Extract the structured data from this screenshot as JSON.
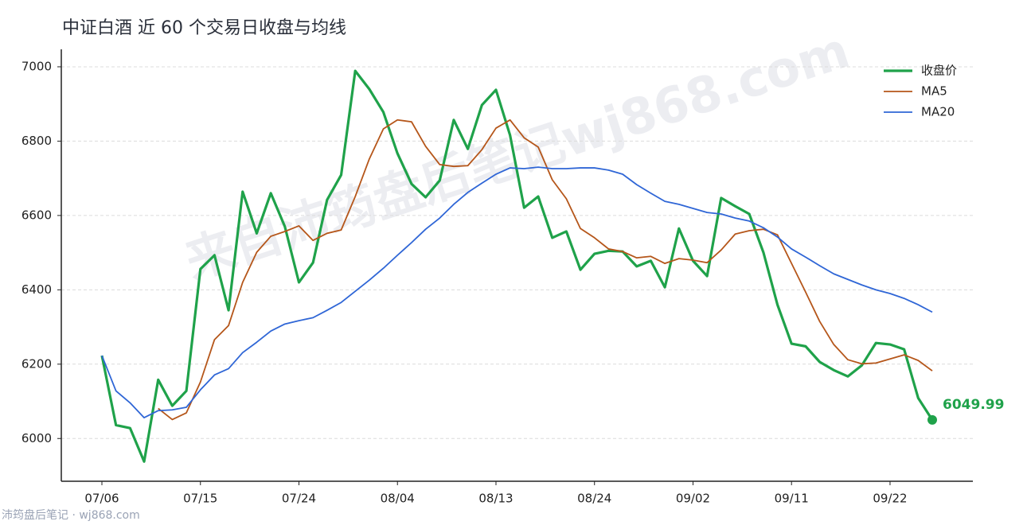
{
  "chart_data": {
    "type": "line",
    "title": "中证白酒 近 60 个交易日收盘与均线",
    "watermark": "来自沛筠盘后笔记wj868.com",
    "footer": "沛筠盘后笔记 · wj868.com",
    "categories": [
      "07/06",
      null,
      null,
      null,
      null,
      null,
      null,
      "07/15",
      null,
      null,
      null,
      null,
      null,
      null,
      "07/24",
      null,
      null,
      null,
      null,
      null,
      null,
      "08/04",
      null,
      null,
      null,
      null,
      null,
      null,
      "08/13",
      null,
      null,
      null,
      null,
      null,
      null,
      "08/24",
      null,
      null,
      null,
      null,
      null,
      null,
      "09/02",
      null,
      null,
      null,
      null,
      null,
      null,
      "09/11",
      null,
      null,
      null,
      null,
      null,
      null,
      "09/22",
      null,
      null,
      null
    ],
    "series": [
      {
        "name": "收盘价",
        "color": "#1fa24a",
        "width": 3.2,
        "values": [
          6223,
          6036,
          6028,
          5938,
          6158,
          6088,
          6128,
          6456,
          6493,
          6345,
          6664,
          6552,
          6660,
          6570,
          6420,
          6473,
          6642,
          6709,
          6989,
          6940,
          6878,
          6767,
          6685,
          6649,
          6694,
          6857,
          6779,
          6897,
          6938,
          6816,
          6621,
          6651,
          6540,
          6557,
          6454,
          6497,
          6505,
          6503,
          6463,
          6478,
          6407,
          6565,
          6478,
          6437,
          6647,
          6625,
          6604,
          6501,
          6360,
          6255,
          6248,
          6206,
          6184,
          6167,
          6197,
          6257,
          6253,
          6240,
          6109,
          6049.99
        ]
      },
      {
        "name": "MA5",
        "color": "#b5561a",
        "width": 1.8,
        "values": [
          null,
          null,
          null,
          null,
          6081,
          6051,
          6069,
          6152,
          6266,
          6304,
          6420,
          6501,
          6544,
          6557,
          6572,
          6533,
          6552,
          6561,
          6651,
          6752,
          6833,
          6857,
          6852,
          6786,
          6737,
          6732,
          6734,
          6777,
          6835,
          6857,
          6809,
          6784,
          6696,
          6645,
          6565,
          6540,
          6510,
          6503,
          6486,
          6490,
          6471,
          6484,
          6480,
          6473,
          6507,
          6550,
          6559,
          6563,
          6548,
          6471,
          6394,
          6315,
          6253,
          6212,
          6201,
          6203,
          6214,
          6225,
          6210,
          6182
        ]
      },
      {
        "name": "MA20",
        "color": "#2f66d6",
        "width": 1.8,
        "values": [
          6223,
          6128,
          6096,
          6056,
          6075,
          6077,
          6084,
          6131,
          6171,
          6188,
          6231,
          6259,
          6289,
          6308,
          6317,
          6325,
          6345,
          6366,
          6396,
          6426,
          6458,
          6493,
          6527,
          6563,
          6593,
          6630,
          6662,
          6687,
          6711,
          6728,
          6726,
          6730,
          6726,
          6726,
          6728,
          6728,
          6722,
          6711,
          6683,
          6660,
          6638,
          6630,
          6619,
          6608,
          6604,
          6593,
          6585,
          6567,
          6542,
          6510,
          6488,
          6465,
          6443,
          6428,
          6413,
          6400,
          6390,
          6377,
          6360,
          6340
        ]
      }
    ],
    "ylim": [
      5885,
      7047
    ],
    "yticks": [
      6000,
      6200,
      6400,
      6600,
      6800,
      7000
    ],
    "grid": true,
    "legend": "upper-right"
  }
}
